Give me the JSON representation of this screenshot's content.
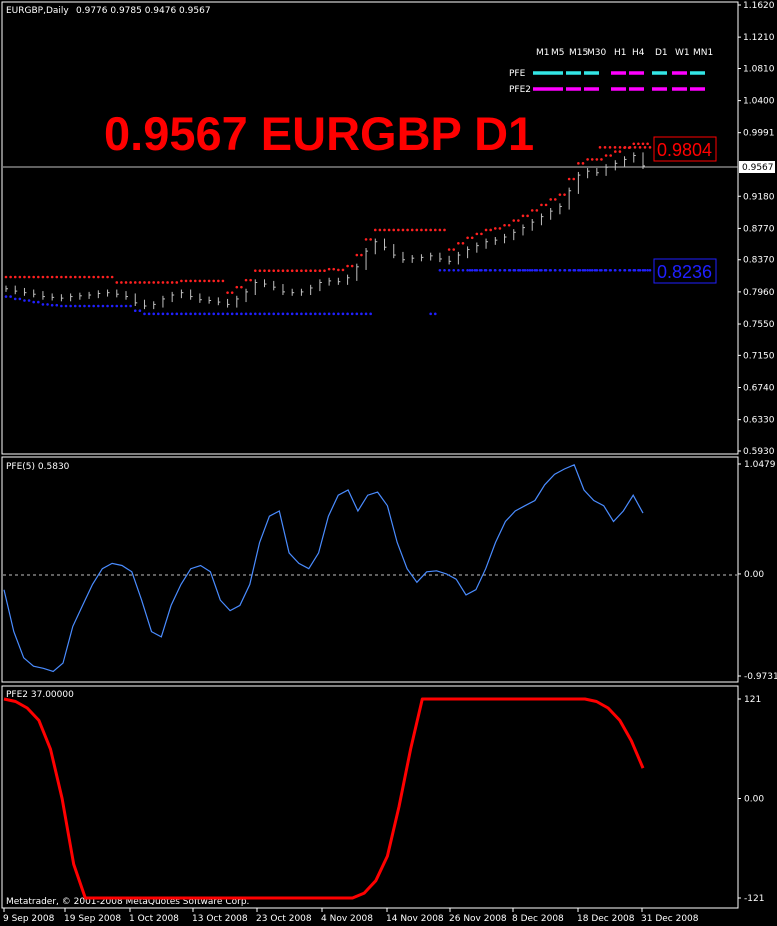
{
  "window": {
    "symbol_label": "EURGBP,Daily",
    "ohlc_label": "0.9776 0.9785 0.9476 0.9567",
    "big_title": "0.9567 EURGBP D1",
    "copyright": "Metatrader, © 2001-2008 MetaQuotes Software Corp."
  },
  "timeframes": [
    "M1",
    "M5",
    "M15",
    "M30",
    "H1",
    "H4",
    "D1",
    "W1",
    "MN1"
  ],
  "legend": [
    {
      "label": "PFE",
      "colors": [
        "#33e6e6",
        "#33e6e6",
        "#33e6e6",
        "#33e6e6",
        "#ff00ff",
        "#ff00ff",
        "#33e6e6",
        "#ff00ff",
        "#33e6e6"
      ]
    },
    {
      "label": "PFE2",
      "colors": [
        "#ff00ff",
        "#ff00ff",
        "#ff00ff",
        "#ff00ff",
        "#ff00ff",
        "#ff00ff",
        "#ff00ff",
        "#ff00ff",
        "#ff00ff"
      ]
    }
  ],
  "price_panel": {
    "current_price_label": "0.9567",
    "upper_level_label": "0.9804",
    "lower_level_label": "0.8236",
    "axis_labels": [
      "1.1620",
      "1.1210",
      "1.0810",
      "1.0400",
      "0.9991",
      "0.9567",
      "0.9180",
      "0.8770",
      "0.8370",
      "0.7960",
      "0.7550",
      "0.7150",
      "0.6740",
      "0.6330",
      "0.5930"
    ],
    "colors": {
      "resistance": "#ff2020",
      "support": "#2020ff",
      "bars": "#c0c0c0",
      "title": "#ff0000"
    }
  },
  "pfe_panel": {
    "label": "PFE(5) 0.5830",
    "axis_labels": [
      "1.0479",
      "0.00",
      "-0.9731"
    ],
    "color": "#4a8cff"
  },
  "pfe2_panel": {
    "label": "PFE2 37.00000",
    "axis_labels": [
      "121",
      "0.00",
      "-121"
    ],
    "color": "#ff0000"
  },
  "time_axis": [
    "9 Sep 2008",
    "19 Sep 2008",
    "1 Oct 2008",
    "13 Oct 2008",
    "23 Oct 2008",
    "4 Nov 2008",
    "14 Nov 2008",
    "26 Nov 2008",
    "8 Dec 2008",
    "18 Dec 2008",
    "31 Dec 2008"
  ],
  "chart_data": {
    "type": "line",
    "bars_close": [
      0.8,
      0.797,
      0.795,
      0.793,
      0.79,
      0.789,
      0.788,
      0.79,
      0.791,
      0.792,
      0.794,
      0.795,
      0.793,
      0.79,
      0.782,
      0.778,
      0.78,
      0.787,
      0.792,
      0.795,
      0.79,
      0.786,
      0.785,
      0.783,
      0.78,
      0.787,
      0.796,
      0.808,
      0.806,
      0.802,
      0.796,
      0.795,
      0.796,
      0.801,
      0.808,
      0.81,
      0.809,
      0.814,
      0.828,
      0.848,
      0.86,
      0.853,
      0.843,
      0.837,
      0.839,
      0.84,
      0.842,
      0.838,
      0.835,
      0.843,
      0.85,
      0.855,
      0.86,
      0.862,
      0.866,
      0.872,
      0.878,
      0.885,
      0.892,
      0.899,
      0.905,
      0.925,
      0.945,
      0.95,
      0.948,
      0.955,
      0.96,
      0.965,
      0.97,
      0.9567
    ],
    "pfe_values": [
      -0.15,
      -0.55,
      -0.8,
      -0.88,
      -0.9,
      -0.93,
      -0.85,
      -0.5,
      -0.3,
      -0.1,
      0.05,
      0.1,
      0.08,
      0.02,
      -0.25,
      -0.55,
      -0.6,
      -0.3,
      -0.1,
      0.05,
      0.08,
      0.02,
      -0.25,
      -0.35,
      -0.3,
      -0.1,
      0.3,
      0.55,
      0.6,
      0.2,
      0.1,
      0.05,
      0.2,
      0.55,
      0.75,
      0.8,
      0.6,
      0.75,
      0.78,
      0.65,
      0.3,
      0.05,
      -0.08,
      0.02,
      0.03,
      0.0,
      -0.05,
      -0.2,
      -0.15,
      0.05,
      0.3,
      0.5,
      0.6,
      0.65,
      0.7,
      0.85,
      0.95,
      1.0,
      1.04,
      0.8,
      0.7,
      0.65,
      0.5,
      0.6,
      0.75,
      0.58
    ],
    "pfe2_values": [
      121,
      118,
      110,
      95,
      60,
      0,
      -80,
      -121,
      -121,
      -121,
      -121,
      -121,
      -121,
      -121,
      -121,
      -121,
      -121,
      -121,
      -121,
      -121,
      -121,
      -121,
      -121,
      -121,
      -121,
      -121,
      -121,
      -121,
      -121,
      -121,
      -121,
      -115,
      -100,
      -70,
      -10,
      60,
      121,
      121,
      121,
      121,
      121,
      121,
      121,
      121,
      121,
      121,
      121,
      121,
      121,
      121,
      121,
      118,
      110,
      95,
      70,
      37
    ],
    "resistance_level": 0.9804,
    "support_level": 0.8236,
    "current_price": 0.9567
  }
}
